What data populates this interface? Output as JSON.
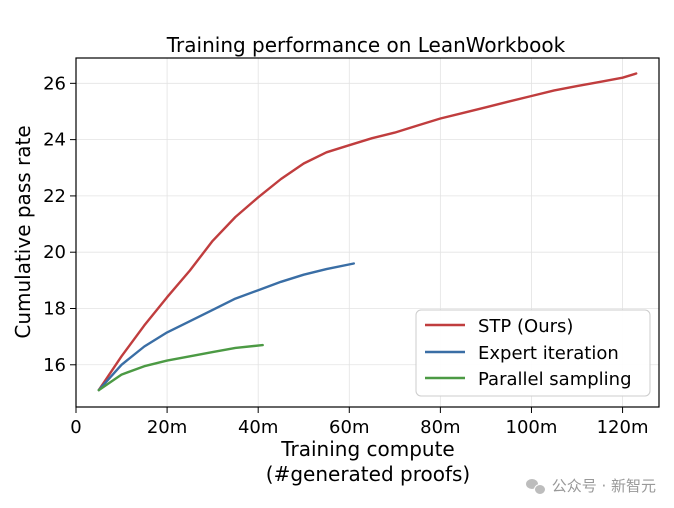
{
  "chart_data": {
    "type": "line",
    "title": "Training performance on LeanWorkbook",
    "xlabel": "Training compute",
    "xlabel_line2": "(#generated proofs)",
    "ylabel": "Cumulative pass rate",
    "xlim": [
      0,
      128
    ],
    "ylim": [
      14.5,
      26.9
    ],
    "grid": true,
    "x_ticks": [
      0,
      20,
      40,
      60,
      80,
      100,
      120
    ],
    "x_tick_labels": [
      "0",
      "20m",
      "40m",
      "60m",
      "80m",
      "100m",
      "120m"
    ],
    "y_ticks": [
      16,
      18,
      20,
      22,
      24,
      26
    ],
    "y_tick_labels": [
      "16",
      "18",
      "20",
      "22",
      "24",
      "26"
    ],
    "legend_position": "bottom-right",
    "series": [
      {
        "name": "STP (Ours)",
        "color": "#c03d3e",
        "x": [
          5,
          10,
          15,
          20,
          25,
          30,
          35,
          40,
          45,
          50,
          55,
          60,
          65,
          70,
          75,
          80,
          85,
          90,
          95,
          100,
          105,
          110,
          115,
          120,
          123
        ],
        "y": [
          15.1,
          16.3,
          17.4,
          18.4,
          19.35,
          20.4,
          21.25,
          21.95,
          22.6,
          23.15,
          23.55,
          23.8,
          24.05,
          24.25,
          24.5,
          24.75,
          24.95,
          25.15,
          25.35,
          25.55,
          25.75,
          25.9,
          26.05,
          26.2,
          26.35
        ]
      },
      {
        "name": "Expert iteration",
        "color": "#3a6ea5",
        "x": [
          5,
          10,
          15,
          20,
          25,
          30,
          35,
          40,
          45,
          50,
          55,
          61
        ],
        "y": [
          15.1,
          16.0,
          16.65,
          17.15,
          17.55,
          17.95,
          18.35,
          18.65,
          18.95,
          19.2,
          19.4,
          19.6
        ]
      },
      {
        "name": "Parallel sampling",
        "color": "#4c9a44",
        "x": [
          5,
          10,
          15,
          20,
          25,
          30,
          35,
          41
        ],
        "y": [
          15.1,
          15.65,
          15.95,
          16.15,
          16.3,
          16.45,
          16.6,
          16.7
        ]
      }
    ]
  },
  "watermark": {
    "text": "公众号 · 新智元",
    "icon": "wechat-icon"
  }
}
